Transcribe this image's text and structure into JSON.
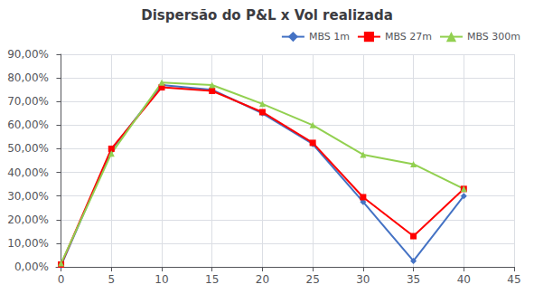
{
  "chart_data": {
    "type": "line",
    "title": "Dispersão do P&L x Vol realizada",
    "x": [
      0,
      5,
      10,
      15,
      20,
      25,
      30,
      35,
      40
    ],
    "series": [
      {
        "name": "MBS 1m",
        "color": "#4472C4",
        "marker": "diamond",
        "values": [
          0.005,
          0.495,
          0.77,
          0.75,
          0.65,
          0.52,
          0.275,
          0.025,
          0.3
        ]
      },
      {
        "name": "MBS 27m",
        "color": "#FF0000",
        "marker": "square",
        "values": [
          0.01,
          0.5,
          0.76,
          0.745,
          0.655,
          0.525,
          0.295,
          0.13,
          0.33
        ]
      },
      {
        "name": "MBS 300m",
        "color": "#92D050",
        "marker": "triangle",
        "values": [
          0.015,
          0.48,
          0.78,
          0.77,
          0.69,
          0.6,
          0.475,
          0.435,
          0.33
        ]
      }
    ],
    "xlim": [
      -0.5,
      45
    ],
    "ylim": [
      0.0,
      0.9
    ],
    "xticks": [
      0,
      5,
      10,
      15,
      20,
      25,
      30,
      35,
      40,
      45
    ],
    "yticks": [
      {
        "value": 0.0,
        "label": "0,00%"
      },
      {
        "value": 0.1,
        "label": "10,00%"
      },
      {
        "value": 0.2,
        "label": "20,00%"
      },
      {
        "value": 0.3,
        "label": "30,00%"
      },
      {
        "value": 0.4,
        "label": "40,00%"
      },
      {
        "value": 0.5,
        "label": "50,00%"
      },
      {
        "value": 0.6,
        "label": "60,00%"
      },
      {
        "value": 0.7,
        "label": "70,00%"
      },
      {
        "value": 0.8,
        "label": "80,00%"
      },
      {
        "value": 0.9,
        "label": "90,00%"
      }
    ],
    "grid": true,
    "legend": "upper right"
  }
}
